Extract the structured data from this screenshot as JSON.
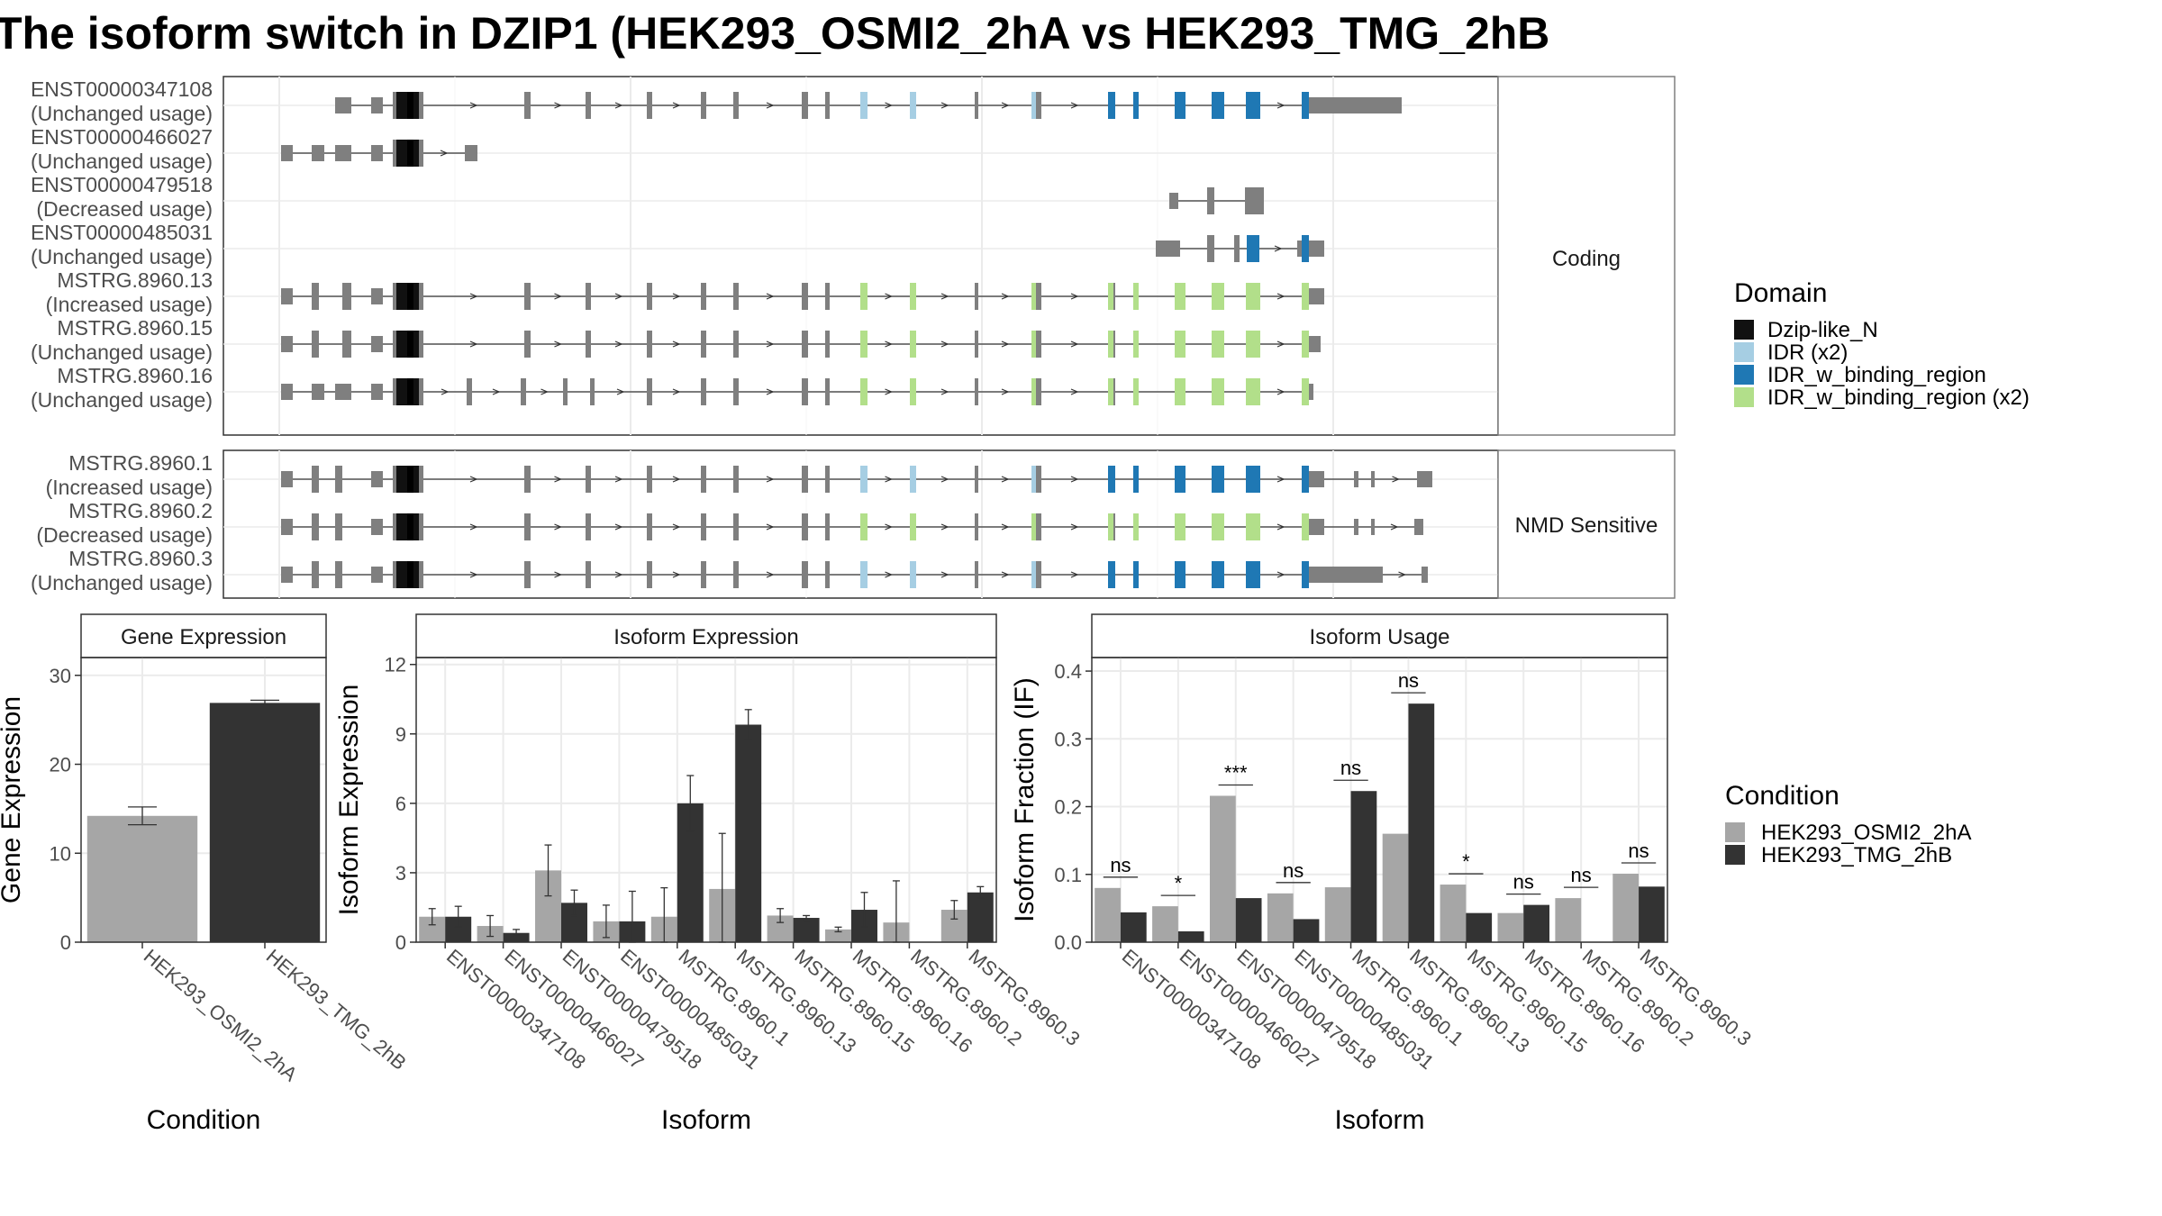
{
  "title": "The isoform switch in DZIP1 (HEK293_OSMI2_2hA vs HEK293_TMG_2hB",
  "colors": {
    "gene_grey": "#7f7f7f",
    "dzip": "#111111",
    "idr": "#a6cee3",
    "idr_binding": "#1f78b4",
    "idr_binding_x2": "#b2df8a",
    "cond_a": "#a6a6a6",
    "cond_b": "#333333"
  },
  "structure": {
    "coding_label": "Coding",
    "nmd_label": "NMD Sensitive",
    "coding": [
      {
        "id": "ENST00000347108",
        "usage": "(Unchanged usage)"
      },
      {
        "id": "ENST00000466027",
        "usage": "(Unchanged usage)"
      },
      {
        "id": "ENST00000479518",
        "usage": "(Decreased usage)"
      },
      {
        "id": "ENST00000485031",
        "usage": "(Unchanged usage)"
      },
      {
        "id": "MSTRG.8960.13",
        "usage": "(Increased usage)"
      },
      {
        "id": "MSTRG.8960.15",
        "usage": "(Unchanged usage)"
      },
      {
        "id": "MSTRG.8960.16",
        "usage": "(Unchanged usage)"
      }
    ],
    "nmd": [
      {
        "id": "MSTRG.8960.1",
        "usage": "(Increased usage)"
      },
      {
        "id": "MSTRG.8960.2",
        "usage": "(Decreased usage)"
      },
      {
        "id": "MSTRG.8960.3",
        "usage": "(Unchanged usage)"
      }
    ]
  },
  "legend_domain": {
    "title": "Domain",
    "items": [
      {
        "label": "Dzip-like_N",
        "color": "#111111"
      },
      {
        "label": "IDR (x2)",
        "color": "#a6cee3"
      },
      {
        "label": "IDR_w_binding_region",
        "color": "#1f78b4"
      },
      {
        "label": "IDR_w_binding_region (x2)",
        "color": "#b2df8a"
      }
    ]
  },
  "legend_condition": {
    "title": "Condition",
    "items": [
      {
        "label": "HEK293_OSMI2_2hA",
        "color": "#a6a6a6"
      },
      {
        "label": "HEK293_TMG_2hB",
        "color": "#333333"
      }
    ]
  },
  "chart_data": [
    {
      "type": "bar",
      "title": "Gene Expression",
      "xlabel": "Condition",
      "ylabel": "Gene Expression",
      "ylim": [
        0,
        32
      ],
      "yticks": [
        0,
        10,
        20,
        30
      ],
      "categories": [
        "HEK293_OSMI2_2hA",
        "HEK293_TMG_2hB"
      ],
      "values": [
        14.2,
        26.9
      ],
      "errors": [
        1.0,
        0.3
      ]
    },
    {
      "type": "bar",
      "title": "Isoform Expression",
      "xlabel": "Isoform",
      "ylabel": "Isoform Expression",
      "ylim": [
        0,
        12.3
      ],
      "yticks": [
        0,
        3,
        6,
        9,
        12
      ],
      "categories": [
        "ENST00000347108",
        "ENST00000466027",
        "ENST00000479518",
        "ENST00000485031",
        "MSTRG.8960.1",
        "MSTRG.8960.13",
        "MSTRG.8960.15",
        "MSTRG.8960.16",
        "MSTRG.8960.2",
        "MSTRG.8960.3"
      ],
      "series": [
        {
          "name": "HEK293_OSMI2_2hA",
          "values": [
            1.1,
            0.7,
            3.1,
            0.9,
            1.1,
            2.3,
            1.15,
            0.55,
            0.85,
            1.4
          ],
          "errors": [
            0.35,
            0.45,
            1.1,
            0.7,
            1.25,
            2.4,
            0.3,
            0.1,
            1.8,
            0.4
          ]
        },
        {
          "name": "HEK293_TMG_2hB",
          "values": [
            1.1,
            0.4,
            1.7,
            0.9,
            6.0,
            9.4,
            1.05,
            1.4,
            0.02,
            2.15
          ],
          "errors": [
            0.45,
            0.15,
            0.55,
            1.3,
            1.2,
            0.65,
            0.1,
            0.75,
            0.0,
            0.25
          ]
        }
      ]
    },
    {
      "type": "bar",
      "title": "Isoform Usage",
      "xlabel": "Isoform",
      "ylabel": "Isoform Fraction (IF)",
      "ylim": [
        0,
        0.42
      ],
      "yticks": [
        "0.0",
        "0.1",
        "0.2",
        "0.3",
        "0.4"
      ],
      "categories": [
        "ENST00000347108",
        "ENST00000466027",
        "ENST00000479518",
        "ENST00000485031",
        "MSTRG.8960.1",
        "MSTRG.8960.13",
        "MSTRG.8960.15",
        "MSTRG.8960.16",
        "MSTRG.8960.2",
        "MSTRG.8960.3"
      ],
      "series": [
        {
          "name": "HEK293_OSMI2_2hA",
          "values": [
            0.08,
            0.053,
            0.216,
            0.072,
            0.081,
            0.16,
            0.085,
            0.043,
            0.065,
            0.101
          ]
        },
        {
          "name": "HEK293_TMG_2hB",
          "values": [
            0.044,
            0.016,
            0.065,
            0.034,
            0.223,
            0.352,
            0.043,
            0.055,
            0.0,
            0.082
          ]
        }
      ],
      "significance": [
        "ns",
        "*",
        "***",
        "ns",
        "ns",
        "ns",
        "*",
        "ns",
        "ns",
        "ns"
      ]
    }
  ]
}
